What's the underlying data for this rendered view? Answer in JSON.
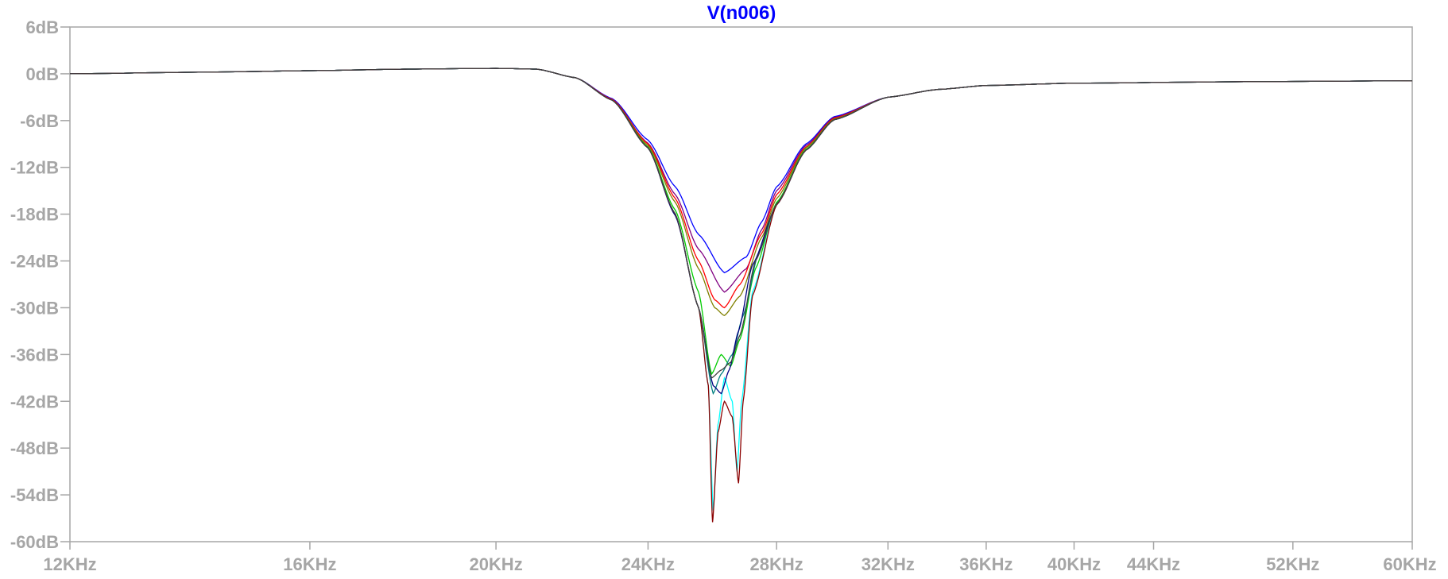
{
  "chart_data": {
    "type": "line",
    "title": "V(n006)",
    "title_color": "#0000ff",
    "xlabel": "",
    "ylabel": "",
    "x_scale": "log",
    "x_unit": "Hz",
    "xlim": [
      12000,
      60000
    ],
    "ylim": [
      -60,
      6
    ],
    "grid": false,
    "legend": "none",
    "x_ticks": [
      {
        "value": 12000,
        "label": "12KHz"
      },
      {
        "value": 16000,
        "label": "16KHz"
      },
      {
        "value": 20000,
        "label": "20KHz"
      },
      {
        "value": 24000,
        "label": "24KHz"
      },
      {
        "value": 28000,
        "label": "28KHz"
      },
      {
        "value": 32000,
        "label": "32KHz"
      },
      {
        "value": 36000,
        "label": "36KHz"
      },
      {
        "value": 40000,
        "label": "40KHz"
      },
      {
        "value": 44000,
        "label": "44KHz"
      },
      {
        "value": 52000,
        "label": "52KHz"
      },
      {
        "value": 60000,
        "label": "60KHz"
      }
    ],
    "y_ticks": [
      {
        "value": 6,
        "label": "6dB"
      },
      {
        "value": 0,
        "label": "0dB"
      },
      {
        "value": -6,
        "label": "-6dB"
      },
      {
        "value": -12,
        "label": "-12dB"
      },
      {
        "value": -18,
        "label": "-18dB"
      },
      {
        "value": -24,
        "label": "-24dB"
      },
      {
        "value": -30,
        "label": "-30dB"
      },
      {
        "value": -36,
        "label": "-36dB"
      },
      {
        "value": -42,
        "label": "-42dB"
      },
      {
        "value": -48,
        "label": "-48dB"
      },
      {
        "value": -54,
        "label": "-54dB"
      },
      {
        "value": -60,
        "label": "-60dB"
      }
    ],
    "colors": {
      "axis": "#a6a6a6",
      "tick_label": "#a6a6a6",
      "series": [
        "#0000ff",
        "#800080",
        "#ff0000",
        "#808000",
        "#00cc00",
        "#008080",
        "#00ffff",
        "#000080",
        "#8b0000",
        "#404040"
      ]
    },
    "series": [
      {
        "values": [
          [
            12000,
            0.0
          ],
          [
            14000,
            0.2
          ],
          [
            16000,
            0.4
          ],
          [
            18000,
            0.6
          ],
          [
            20000,
            0.7
          ],
          [
            21000,
            0.6
          ],
          [
            22000,
            -0.5
          ],
          [
            23000,
            -3.2
          ],
          [
            24000,
            -8.5
          ],
          [
            24800,
            -14.5
          ],
          [
            25500,
            -20.6
          ],
          [
            26300,
            -25.5
          ],
          [
            27000,
            -23.5
          ],
          [
            27500,
            -19.0
          ],
          [
            28000,
            -14.5
          ],
          [
            29000,
            -9.0
          ],
          [
            30000,
            -5.5
          ],
          [
            32000,
            -3.0
          ],
          [
            34000,
            -2.0
          ],
          [
            36000,
            -1.5
          ],
          [
            40000,
            -1.2
          ],
          [
            50000,
            -1.0
          ],
          [
            60000,
            -0.9
          ]
        ]
      },
      {
        "values": [
          [
            12000,
            0.0
          ],
          [
            14000,
            0.2
          ],
          [
            16000,
            0.4
          ],
          [
            18000,
            0.6
          ],
          [
            20000,
            0.7
          ],
          [
            21000,
            0.6
          ],
          [
            22000,
            -0.5
          ],
          [
            23000,
            -3.3
          ],
          [
            24000,
            -8.9
          ],
          [
            24800,
            -15.5
          ],
          [
            25500,
            -22.5
          ],
          [
            26300,
            -28.0
          ],
          [
            27000,
            -25.0
          ],
          [
            27500,
            -20.0
          ],
          [
            28000,
            -15.0
          ],
          [
            29000,
            -9.2
          ],
          [
            30000,
            -5.6
          ],
          [
            32000,
            -3.0
          ],
          [
            34000,
            -2.0
          ],
          [
            36000,
            -1.5
          ],
          [
            40000,
            -1.2
          ],
          [
            50000,
            -1.0
          ],
          [
            60000,
            -0.9
          ]
        ]
      },
      {
        "values": [
          [
            12000,
            0.0
          ],
          [
            14000,
            0.2
          ],
          [
            16000,
            0.4
          ],
          [
            18000,
            0.6
          ],
          [
            20000,
            0.7
          ],
          [
            21000,
            0.6
          ],
          [
            22000,
            -0.5
          ],
          [
            23000,
            -3.3
          ],
          [
            24000,
            -9.0
          ],
          [
            24800,
            -16.0
          ],
          [
            25500,
            -24.0
          ],
          [
            26000,
            -29.0
          ],
          [
            26300,
            -30.0
          ],
          [
            26800,
            -27.0
          ],
          [
            27500,
            -20.5
          ],
          [
            28000,
            -15.5
          ],
          [
            29000,
            -9.4
          ],
          [
            30000,
            -5.7
          ],
          [
            32000,
            -3.0
          ],
          [
            34000,
            -2.0
          ],
          [
            36000,
            -1.5
          ],
          [
            40000,
            -1.2
          ],
          [
            50000,
            -1.0
          ],
          [
            60000,
            -0.9
          ]
        ]
      },
      {
        "values": [
          [
            12000,
            0.0
          ],
          [
            14000,
            0.2
          ],
          [
            16000,
            0.4
          ],
          [
            18000,
            0.6
          ],
          [
            20000,
            0.7
          ],
          [
            21000,
            0.6
          ],
          [
            22000,
            -0.5
          ],
          [
            23000,
            -3.4
          ],
          [
            24000,
            -9.2
          ],
          [
            24800,
            -16.5
          ],
          [
            25500,
            -25.0
          ],
          [
            26000,
            -30.0
          ],
          [
            26300,
            -31.0
          ],
          [
            26800,
            -28.5
          ],
          [
            27500,
            -21.0
          ],
          [
            28000,
            -16.0
          ],
          [
            29000,
            -9.5
          ],
          [
            30000,
            -5.8
          ],
          [
            32000,
            -3.0
          ],
          [
            34000,
            -2.0
          ],
          [
            36000,
            -1.5
          ],
          [
            40000,
            -1.2
          ],
          [
            50000,
            -1.0
          ],
          [
            60000,
            -0.9
          ]
        ]
      },
      {
        "values": [
          [
            12000,
            0.0
          ],
          [
            14000,
            0.2
          ],
          [
            16000,
            0.4
          ],
          [
            18000,
            0.6
          ],
          [
            20000,
            0.7
          ],
          [
            21000,
            0.6
          ],
          [
            22000,
            -0.5
          ],
          [
            23000,
            -3.4
          ],
          [
            24000,
            -9.4
          ],
          [
            24800,
            -17.5
          ],
          [
            25500,
            -28.0
          ],
          [
            25900,
            -38.5
          ],
          [
            26200,
            -36.0
          ],
          [
            26500,
            -37.5
          ],
          [
            26800,
            -34.0
          ],
          [
            27300,
            -25.0
          ],
          [
            28000,
            -16.5
          ],
          [
            29000,
            -9.7
          ],
          [
            30000,
            -5.9
          ],
          [
            32000,
            -3.0
          ],
          [
            34000,
            -2.0
          ],
          [
            36000,
            -1.5
          ],
          [
            40000,
            -1.2
          ],
          [
            50000,
            -1.0
          ],
          [
            60000,
            -0.9
          ]
        ]
      },
      {
        "values": [
          [
            12000,
            0.0
          ],
          [
            14000,
            0.2
          ],
          [
            16000,
            0.4
          ],
          [
            18000,
            0.6
          ],
          [
            20000,
            0.7
          ],
          [
            21000,
            0.6
          ],
          [
            22000,
            -0.5
          ],
          [
            23000,
            -3.4
          ],
          [
            24000,
            -9.5
          ],
          [
            24800,
            -18.0
          ],
          [
            25500,
            -30.0
          ],
          [
            25950,
            -41.0
          ],
          [
            26200,
            -38.5
          ],
          [
            26550,
            -36.0
          ],
          [
            26900,
            -31.0
          ],
          [
            27400,
            -23.0
          ],
          [
            28000,
            -16.7
          ],
          [
            29000,
            -9.8
          ],
          [
            30000,
            -5.9
          ],
          [
            32000,
            -3.0
          ],
          [
            34000,
            -2.0
          ],
          [
            36000,
            -1.5
          ],
          [
            40000,
            -1.2
          ],
          [
            50000,
            -1.0
          ],
          [
            60000,
            -0.9
          ]
        ]
      },
      {
        "values": [
          [
            12000,
            0.0
          ],
          [
            14000,
            0.2
          ],
          [
            16000,
            0.4
          ],
          [
            18000,
            0.6
          ],
          [
            20000,
            0.7
          ],
          [
            21000,
            0.6
          ],
          [
            22000,
            -0.5
          ],
          [
            23000,
            -3.4
          ],
          [
            24000,
            -9.5
          ],
          [
            24800,
            -18.0
          ],
          [
            25500,
            -30.0
          ],
          [
            25800,
            -40.0
          ],
          [
            25950,
            -56.0
          ],
          [
            26100,
            -45.0
          ],
          [
            26300,
            -39.0
          ],
          [
            26550,
            -42.0
          ],
          [
            26700,
            -51.0
          ],
          [
            26850,
            -42.0
          ],
          [
            27200,
            -28.0
          ],
          [
            28000,
            -16.8
          ],
          [
            29000,
            -9.8
          ],
          [
            30000,
            -5.9
          ],
          [
            32000,
            -3.0
          ],
          [
            34000,
            -2.0
          ],
          [
            36000,
            -1.5
          ],
          [
            40000,
            -1.2
          ],
          [
            50000,
            -1.0
          ],
          [
            60000,
            -0.9
          ]
        ]
      },
      {
        "values": [
          [
            12000,
            0.0
          ],
          [
            14000,
            0.2
          ],
          [
            16000,
            0.4
          ],
          [
            18000,
            0.6
          ],
          [
            20000,
            0.7
          ],
          [
            21000,
            0.6
          ],
          [
            22000,
            -0.5
          ],
          [
            23000,
            -3.4
          ],
          [
            24000,
            -9.5
          ],
          [
            24800,
            -18.2
          ],
          [
            25500,
            -30.0
          ],
          [
            25950,
            -40.0
          ],
          [
            26200,
            -41.0
          ],
          [
            26450,
            -38.0
          ],
          [
            26750,
            -33.0
          ],
          [
            27200,
            -24.5
          ],
          [
            28000,
            -16.8
          ],
          [
            29000,
            -9.8
          ],
          [
            30000,
            -5.9
          ],
          [
            32000,
            -3.0
          ],
          [
            34000,
            -2.0
          ],
          [
            36000,
            -1.5
          ],
          [
            40000,
            -1.2
          ],
          [
            50000,
            -1.0
          ],
          [
            60000,
            -0.9
          ]
        ]
      },
      {
        "values": [
          [
            12000,
            0.0
          ],
          [
            14000,
            0.2
          ],
          [
            16000,
            0.4
          ],
          [
            18000,
            0.6
          ],
          [
            20000,
            0.7
          ],
          [
            21000,
            0.6
          ],
          [
            22000,
            -0.5
          ],
          [
            23000,
            -3.4
          ],
          [
            24000,
            -9.5
          ],
          [
            24800,
            -18.0
          ],
          [
            25500,
            -30.0
          ],
          [
            25800,
            -40.0
          ],
          [
            25930,
            -57.5
          ],
          [
            26100,
            -46.0
          ],
          [
            26300,
            -42.0
          ],
          [
            26550,
            -44.0
          ],
          [
            26750,
            -52.5
          ],
          [
            26900,
            -42.0
          ],
          [
            27200,
            -28.5
          ],
          [
            28000,
            -16.8
          ],
          [
            29000,
            -9.8
          ],
          [
            30000,
            -5.9
          ],
          [
            32000,
            -3.0
          ],
          [
            34000,
            -2.0
          ],
          [
            36000,
            -1.5
          ],
          [
            40000,
            -1.2
          ],
          [
            50000,
            -1.0
          ],
          [
            60000,
            -0.9
          ]
        ]
      },
      {
        "values": [
          [
            12000,
            0.0
          ],
          [
            14000,
            0.2
          ],
          [
            16000,
            0.4
          ],
          [
            18000,
            0.6
          ],
          [
            20000,
            0.7
          ],
          [
            21000,
            0.6
          ],
          [
            22000,
            -0.5
          ],
          [
            23000,
            -3.4
          ],
          [
            24000,
            -9.5
          ],
          [
            24800,
            -18.0
          ],
          [
            25500,
            -30.0
          ],
          [
            25900,
            -39.0
          ],
          [
            26200,
            -38.0
          ],
          [
            26500,
            -37.0
          ],
          [
            26800,
            -33.5
          ],
          [
            27300,
            -24.0
          ],
          [
            28000,
            -16.7
          ],
          [
            29000,
            -9.8
          ],
          [
            30000,
            -5.9
          ],
          [
            32000,
            -3.0
          ],
          [
            34000,
            -2.0
          ],
          [
            36000,
            -1.5
          ],
          [
            40000,
            -1.2
          ],
          [
            50000,
            -1.0
          ],
          [
            60000,
            -0.9
          ]
        ]
      }
    ]
  }
}
